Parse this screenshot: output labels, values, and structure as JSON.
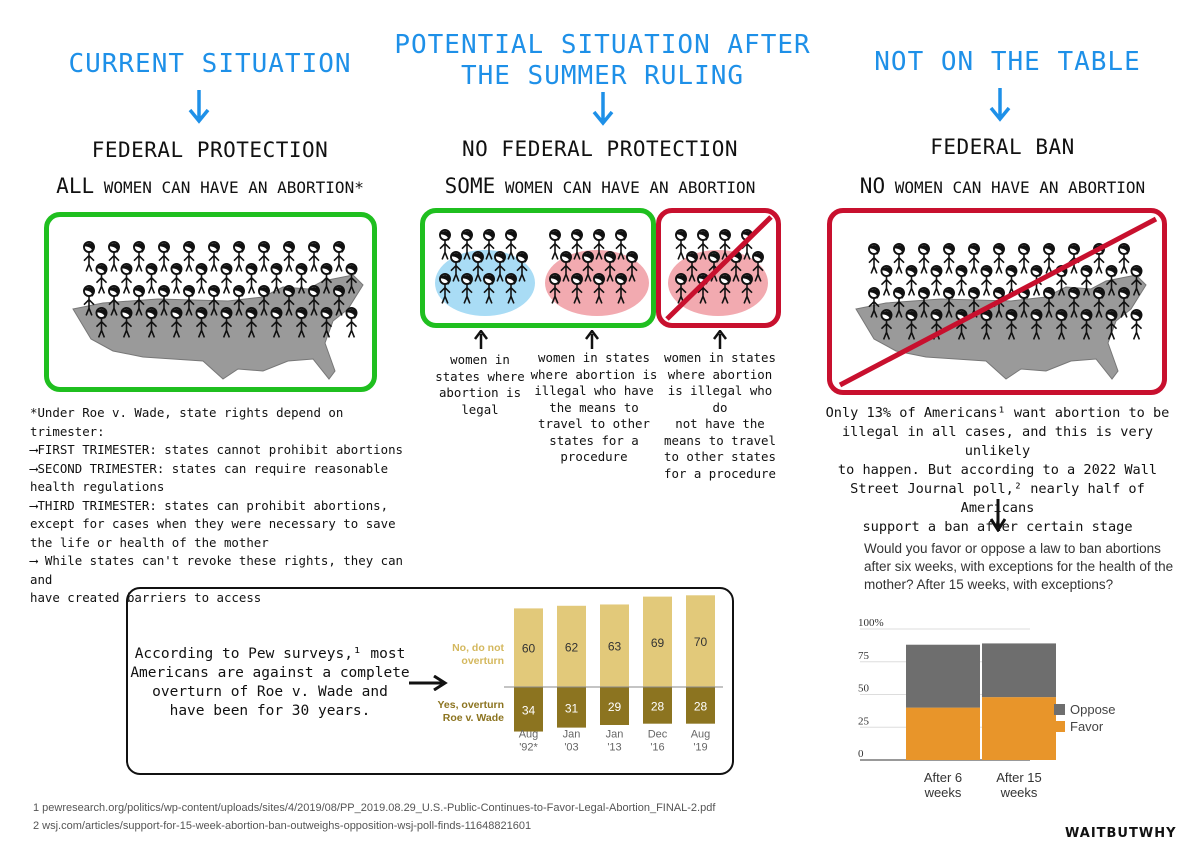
{
  "columns": {
    "left": {
      "heading": "CURRENT SITUATION",
      "title": "FEDERAL PROTECTION",
      "subtitle_big": "ALL",
      "subtitle_rest": " WOMEN CAN HAVE AN ABORTION*"
    },
    "middle": {
      "heading_line1": "POTENTIAL SITUATION AFTER",
      "heading_line2": "THE SUMMER RULING",
      "title": "NO FEDERAL PROTECTION",
      "subtitle_big": "SOME",
      "subtitle_rest": " WOMEN CAN HAVE AN ABORTION",
      "captions": [
        "women in\nstates where\nabortion is\nlegal",
        "women in states\nwhere abortion is\nillegal who have\nthe means to\ntravel to other\nstates for a\nprocedure",
        "women in states\nwhere abortion\nis illegal who do\nnot have the\nmeans to travel\nto other states\nfor a procedure"
      ]
    },
    "right": {
      "heading": "NOT ON THE TABLE",
      "title": "FEDERAL BAN",
      "subtitle_big": "NO",
      "subtitle_rest": " WOMEN CAN HAVE AN ABORTION",
      "text": "Only 13% of Americans¹ want abortion to be\nillegal in all cases, and this is very unlikely\nto happen. But according to a 2022 Wall\nStreet Journal poll,² nearly half of Americans\nsupport a ban after certain stage"
    }
  },
  "notes": "*Under Roe v. Wade, state rights depend on trimester:\n⟶FIRST TRIMESTER: states cannot prohibit abortions\n⟶SECOND TRIMESTER: states can require reasonable\nhealth regulations\n⟶THIRD TRIMESTER: states can prohibit abortions,\nexcept for cases when they were necessary to save\nthe life or health of the mother\n⟶ While states can't revoke these rights, they can and\nhave created barriers to access",
  "pew_text": "According to Pew surveys,¹ most\nAmericans are against a complete\noverturn of Roe v. Wade and\nhave been for 30 years.",
  "chart_data": [
    {
      "type": "bar",
      "categories": [
        "Aug\n'92*",
        "Jan\n'03",
        "Jan\n'13",
        "Dec\n'16",
        "Aug\n'19"
      ],
      "series": [
        {
          "name": "No, do not overturn",
          "values": [
            60,
            62,
            63,
            69,
            70
          ],
          "color": "#e2c97a"
        },
        {
          "name": "Yes, overturn Roe v. Wade",
          "values": [
            34,
            31,
            29,
            28,
            28
          ],
          "color": "#8c7420"
        }
      ]
    },
    {
      "type": "bar",
      "title": "Would you favor or oppose a law to ban abortions after six weeks, with exceptions for the health of the mother? After 15 weeks, with exceptions?",
      "categories": [
        "After 6\nweeks",
        "After 15\nweeks"
      ],
      "ylim": [
        0,
        100
      ],
      "yticks": [
        "0",
        "25",
        "50",
        "75",
        "100%"
      ],
      "series": [
        {
          "name": "Favor",
          "values": [
            40,
            48
          ],
          "color": "#e8952a"
        },
        {
          "name": "Oppose",
          "values": [
            48,
            41
          ],
          "color": "#6e6e6e"
        }
      ]
    }
  ],
  "footnotes": [
    "1  pewresearch.org/politics/wp-content/uploads/sites/4/2019/08/PP_2019.08.29_U.S.-Public-Continues-to-Favor-Legal-Abortion_FINAL-2.pdf",
    "2  wsj.com/articles/support-for-15-week-abortion-ban-outweighs-opposition-wsj-poll-finds-11648821601"
  ],
  "logo": "WAITBUTWHY",
  "colors": {
    "heading": "#1e90e8",
    "green": "#1fbf1f",
    "red": "#c8102e",
    "map": "#9a9a9a",
    "blob_blue": "#a9dcf5",
    "blob_pink": "#f2aab0"
  }
}
